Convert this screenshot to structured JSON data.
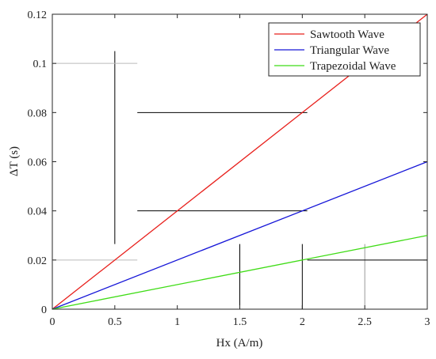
{
  "chart_data": {
    "type": "line",
    "title": "",
    "xlabel": "Hx (A/m)",
    "ylabel": "ΔT (s)",
    "xlim": [
      0,
      3
    ],
    "ylim": [
      0,
      0.12
    ],
    "x_ticks": [
      0,
      0.5,
      1,
      1.5,
      2,
      2.5,
      3
    ],
    "x_tick_labels": [
      "0",
      "0.5",
      "1",
      "1.5",
      "2",
      "2.5",
      "3"
    ],
    "y_ticks": [
      0,
      0.02,
      0.04,
      0.06,
      0.08,
      0.1,
      0.12
    ],
    "y_tick_labels": [
      "0",
      "0.02",
      "0.04",
      "0.06",
      "0.08",
      "0.1",
      "0.12"
    ],
    "grid": false,
    "legend_position": "top-right",
    "series": [
      {
        "name": "Sawtooth Wave",
        "color": "#e8201c",
        "x": [
          0,
          3
        ],
        "y": [
          0,
          0.12
        ]
      },
      {
        "name": "Triangular Wave",
        "color": "#1616d8",
        "x": [
          0,
          3
        ],
        "y": [
          0,
          0.06
        ]
      },
      {
        "name": "Trapezoidal Wave",
        "color": "#3fdc16",
        "x": [
          0,
          3
        ],
        "y": [
          0,
          0.03
        ]
      }
    ],
    "annotations": {
      "vertical_lines": [
        {
          "x": 0.5,
          "y_from": 0.0265,
          "y_to": 0.105,
          "color": "#000000"
        },
        {
          "x": 1.5,
          "y_from": 0.0,
          "y_to": 0.0265,
          "color": "#000000"
        },
        {
          "x": 2.0,
          "y_from": 0.0,
          "y_to": 0.0265,
          "color": "#000000"
        },
        {
          "x": 2.5,
          "y_from": 0.0,
          "y_to": 0.0265,
          "color": "#999999"
        }
      ],
      "horizontal_lines": [
        {
          "y": 0.1,
          "x_from": 0.0,
          "x_to": 0.68,
          "color": "#bbbbbb"
        },
        {
          "y": 0.08,
          "x_from": 0.68,
          "x_to": 2.04,
          "color": "#000000"
        },
        {
          "y": 0.04,
          "x_from": 0.68,
          "x_to": 2.04,
          "color": "#000000"
        },
        {
          "y": 0.02,
          "x_from": 0.0,
          "x_to": 0.68,
          "color": "#bbbbbb"
        },
        {
          "y": 0.02,
          "x_from": 2.04,
          "x_to": 3.0,
          "color": "#000000"
        }
      ]
    }
  }
}
